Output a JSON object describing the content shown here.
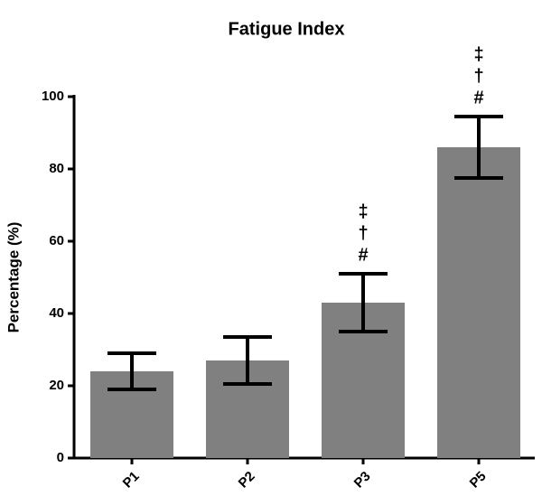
{
  "chart_data": {
    "type": "bar",
    "title": "Fatigue Index",
    "ylabel": "Percentage (%)",
    "categories": [
      "P1",
      "P2",
      "P3",
      "P5"
    ],
    "values": [
      24,
      27,
      43,
      86
    ],
    "errors": [
      5,
      6.5,
      8,
      8.5
    ],
    "color": "#808080",
    "ylim": [
      0,
      100
    ],
    "yticks": [
      0,
      20,
      40,
      60,
      80,
      100
    ],
    "annotations": [
      {
        "category": "P3",
        "symbols": [
          "‡",
          "†",
          "#"
        ]
      },
      {
        "category": "P5",
        "symbols": [
          "‡",
          "†",
          "#"
        ]
      }
    ]
  }
}
